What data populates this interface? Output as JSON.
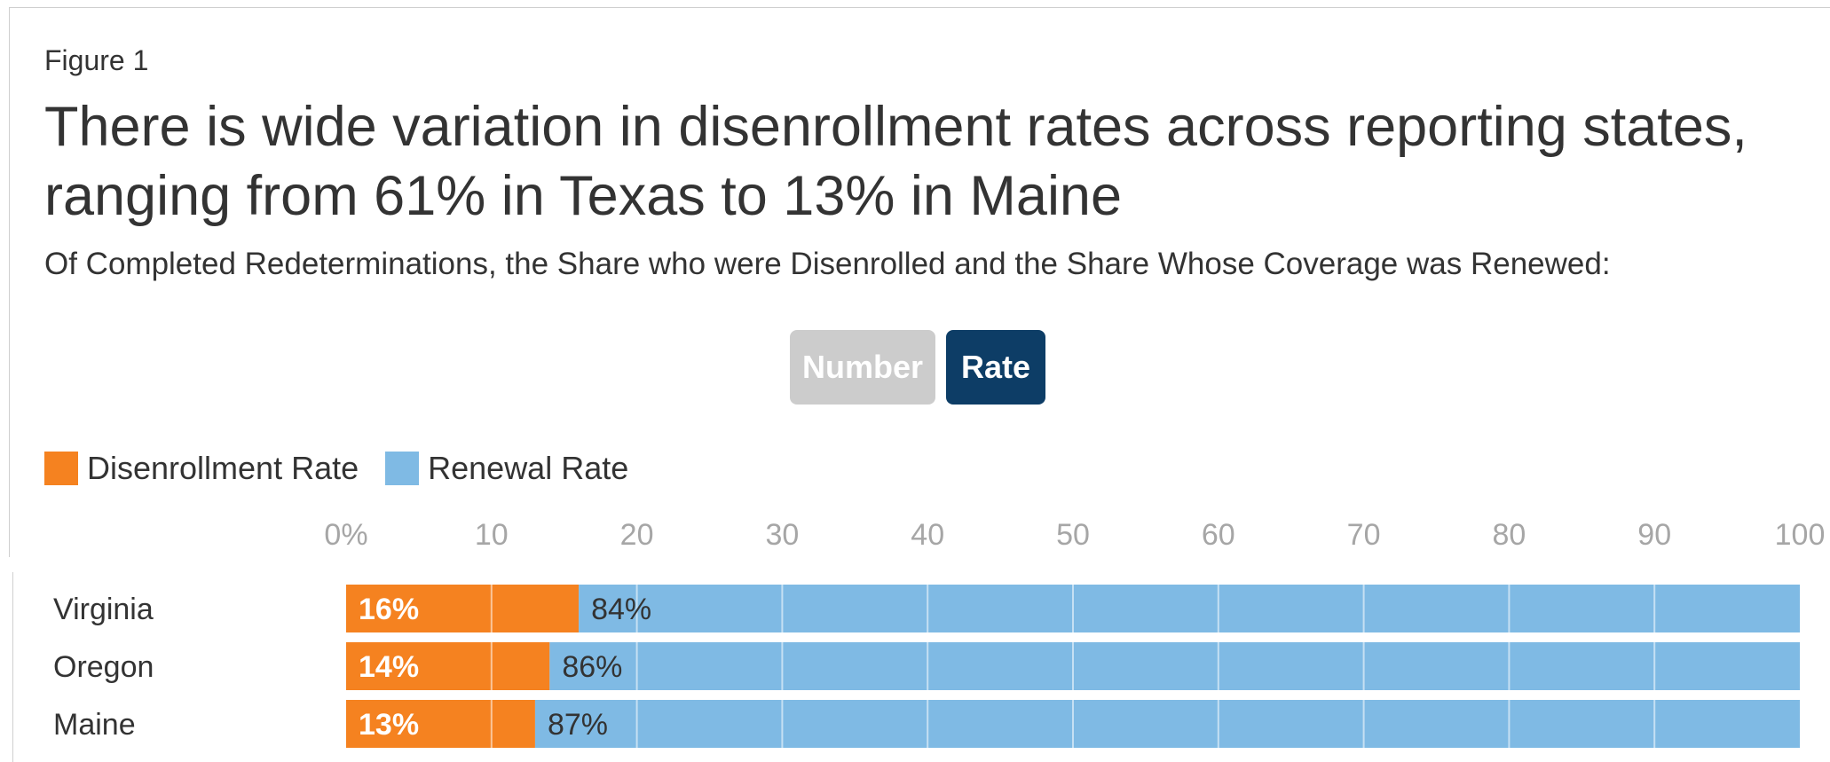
{
  "figure_label": "Figure 1",
  "title": "There is wide variation in disenrollment rates across reporting states, ranging from 61% in Texas to 13% in Maine",
  "subtitle": "Of Completed Redeterminations, the Share who were Disenrolled and the Share Whose Coverage was Renewed:",
  "toggle": {
    "number_label": "Number",
    "rate_label": "Rate",
    "active": "Rate",
    "inactive_color": "#cccccc",
    "active_color": "#0d3d66"
  },
  "legend": [
    {
      "label": "Disenrollment Rate",
      "color": "#f58220"
    },
    {
      "label": "Renewal Rate",
      "color": "#7fbae4"
    }
  ],
  "chart_data": {
    "type": "bar",
    "orientation": "horizontal",
    "stacked": true,
    "categories": [
      "Virginia",
      "Oregon",
      "Maine"
    ],
    "series": [
      {
        "name": "Disenrollment Rate",
        "values": [
          16,
          14,
          13
        ],
        "labels": [
          "16%",
          "14%",
          "13%"
        ],
        "color": "#f58220"
      },
      {
        "name": "Renewal Rate",
        "values": [
          84,
          86,
          87
        ],
        "labels": [
          "84%",
          "86%",
          "87%"
        ],
        "color": "#7fbae4"
      }
    ],
    "xlim": [
      0,
      100
    ],
    "x_ticks": [
      {
        "value": 0,
        "label": "0%"
      },
      {
        "value": 10,
        "label": "10"
      },
      {
        "value": 20,
        "label": "20"
      },
      {
        "value": 30,
        "label": "30"
      },
      {
        "value": 40,
        "label": "40"
      },
      {
        "value": 50,
        "label": "50"
      },
      {
        "value": 60,
        "label": "60"
      },
      {
        "value": 70,
        "label": "70"
      },
      {
        "value": 80,
        "label": "80"
      },
      {
        "value": 90,
        "label": "90"
      },
      {
        "value": 100,
        "label": "100"
      }
    ],
    "grid": true,
    "axis_position": "top",
    "legend_position": "top-left"
  }
}
